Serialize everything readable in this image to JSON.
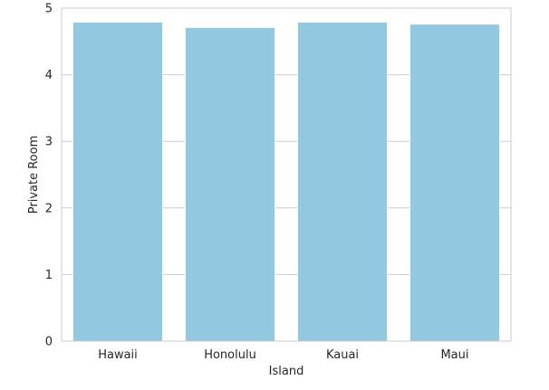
{
  "chart_data": {
    "type": "bar",
    "categories": [
      "Hawaii",
      "Honolulu",
      "Kauai",
      "Maui"
    ],
    "values": [
      4.79,
      4.71,
      4.79,
      4.76
    ],
    "xlabel": "Island",
    "ylabel": "Private Room",
    "ylim": [
      0,
      5
    ],
    "yticks": [
      0,
      1,
      2,
      3,
      4,
      5
    ],
    "grid": "horizontal",
    "bar_color": "#92c9e0",
    "grid_color": "#cccccc",
    "frame_color": "#cccccc"
  }
}
